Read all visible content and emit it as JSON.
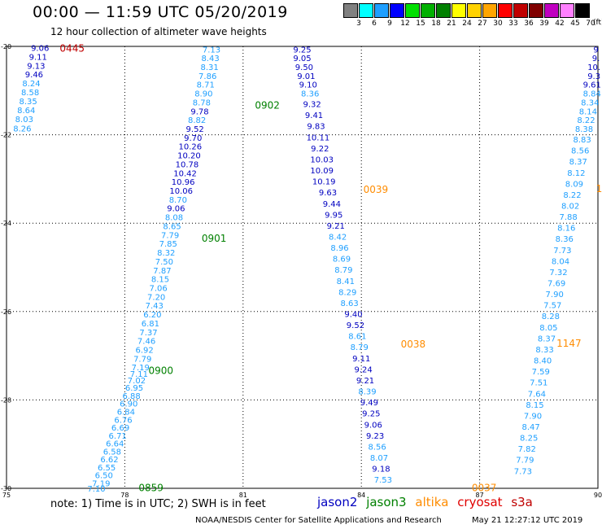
{
  "header": {
    "title": "00:00 — 11:59 UTC 05/20/2019",
    "subtitle": "12 hour collection of altimeter wave heights"
  },
  "color_scale": {
    "labels": [
      "3",
      "6",
      "9",
      "12",
      "15",
      "18",
      "21",
      "24",
      "27",
      "30",
      "33",
      "36",
      "39",
      "42",
      "45",
      "70"
    ],
    "unit": "(ft)",
    "colors": [
      "#808080",
      "#00ffff",
      "#1e9fff",
      "#0000ff",
      "#00e000",
      "#00b000",
      "#008000",
      "#ffff00",
      "#ffd200",
      "#ffa500",
      "#ff0000",
      "#c00000",
      "#800000",
      "#c000c0",
      "#ff80ff",
      "#000000"
    ]
  },
  "axes": {
    "lon_labels": [
      "75",
      "78",
      "81",
      "84",
      "87",
      "90"
    ],
    "lat_labels": [
      "-20",
      "-22",
      "-24",
      "-26",
      "-28",
      "-30"
    ]
  },
  "satellites": {
    "jason2": {
      "name": "jason2",
      "color": "#0000c0"
    },
    "jason3": {
      "name": "jason3",
      "color": "#008000"
    },
    "altika": {
      "name": "altika",
      "color": "#ff8c00"
    },
    "cryosat": {
      "name": "cryosat",
      "color": "#e00000"
    },
    "s3a": {
      "name": "s3a",
      "color": "#c00000"
    },
    "value_colors": {
      "light": "#1e9fff",
      "dark": "#0000c0"
    }
  },
  "time_labels": [
    {
      "text": "0445",
      "sat": "s3a",
      "lon": 76.35,
      "lat": -20.03
    },
    {
      "text": "0902",
      "sat": "jason3",
      "lon": 81.3,
      "lat": -21.32
    },
    {
      "text": "0901",
      "sat": "jason3",
      "lon": 79.95,
      "lat": -24.33
    },
    {
      "text": "0900",
      "sat": "jason3",
      "lon": 78.6,
      "lat": -27.32
    },
    {
      "text": "0859",
      "sat": "jason3",
      "lon": 78.35,
      "lat": -29.97
    },
    {
      "text": "0039",
      "sat": "altika",
      "lon": 84.05,
      "lat": -23.22
    },
    {
      "text": "0038",
      "sat": "altika",
      "lon": 85.0,
      "lat": -26.72
    },
    {
      "text": "0037",
      "sat": "altika",
      "lon": 86.8,
      "lat": -29.97
    },
    {
      "text": "1147",
      "sat": "altika",
      "lon": 88.95,
      "lat": -26.7
    },
    {
      "text": "1",
      "sat": "altika",
      "lon": 89.95,
      "lat": -23.2
    }
  ],
  "tracks": [
    {
      "name": "s3a-left-track",
      "points": [
        {
          "v": "9.06",
          "lon": 75.85,
          "lat": -20.03,
          "c": "dark"
        },
        {
          "v": "9.11",
          "lon": 75.8,
          "lat": -20.23,
          "c": "dark"
        },
        {
          "v": "9.13",
          "lon": 75.75,
          "lat": -20.43,
          "c": "dark"
        },
        {
          "v": "9.46",
          "lon": 75.7,
          "lat": -20.63,
          "c": "dark"
        },
        {
          "v": "8.24",
          "lon": 75.63,
          "lat": -20.83,
          "c": "light"
        },
        {
          "v": "8.58",
          "lon": 75.6,
          "lat": -21.03,
          "c": "light"
        },
        {
          "v": "8.35",
          "lon": 75.55,
          "lat": -21.23,
          "c": "light"
        },
        {
          "v": "8.64",
          "lon": 75.5,
          "lat": -21.44,
          "c": "light"
        },
        {
          "v": "8.03",
          "lon": 75.45,
          "lat": -21.64,
          "c": "light"
        },
        {
          "v": "8.26",
          "lon": 75.4,
          "lat": -21.85,
          "c": "light"
        }
      ]
    },
    {
      "name": "jason3-track",
      "points": [
        {
          "v": "7.13",
          "lon": 80.2,
          "lat": -20.06,
          "c": "light"
        },
        {
          "v": "8.43",
          "lon": 80.17,
          "lat": -20.26,
          "c": "light"
        },
        {
          "v": "8.31",
          "lon": 80.15,
          "lat": -20.46,
          "c": "light"
        },
        {
          "v": "7.86",
          "lon": 80.1,
          "lat": -20.66,
          "c": "light"
        },
        {
          "v": "8.71",
          "lon": 80.05,
          "lat": -20.86,
          "c": "light"
        },
        {
          "v": "8.90",
          "lon": 80.0,
          "lat": -21.06,
          "c": "light"
        },
        {
          "v": "8.78",
          "lon": 79.95,
          "lat": -21.26,
          "c": "light"
        },
        {
          "v": "9.78",
          "lon": 79.9,
          "lat": -21.46,
          "c": "dark"
        },
        {
          "v": "8.82",
          "lon": 79.83,
          "lat": -21.66,
          "c": "light"
        },
        {
          "v": "9.52",
          "lon": 79.78,
          "lat": -21.86,
          "c": "dark"
        },
        {
          "v": "9.70",
          "lon": 79.73,
          "lat": -22.06,
          "c": "dark"
        },
        {
          "v": "10.26",
          "lon": 79.66,
          "lat": -22.26,
          "c": "dark"
        },
        {
          "v": "10.20",
          "lon": 79.63,
          "lat": -22.46,
          "c": "dark"
        },
        {
          "v": "10.78",
          "lon": 79.58,
          "lat": -22.66,
          "c": "dark"
        },
        {
          "v": "10.42",
          "lon": 79.53,
          "lat": -22.86,
          "c": "dark"
        },
        {
          "v": "10.96",
          "lon": 79.48,
          "lat": -23.06,
          "c": "dark"
        },
        {
          "v": "10.06",
          "lon": 79.43,
          "lat": -23.26,
          "c": "dark"
        },
        {
          "v": "8.70",
          "lon": 79.35,
          "lat": -23.46,
          "c": "light"
        },
        {
          "v": "9.06",
          "lon": 79.3,
          "lat": -23.66,
          "c": "dark"
        },
        {
          "v": "8.08",
          "lon": 79.25,
          "lat": -23.86,
          "c": "light"
        },
        {
          "v": "8.65",
          "lon": 79.2,
          "lat": -24.06,
          "c": "light"
        },
        {
          "v": "7.79",
          "lon": 79.15,
          "lat": -24.26,
          "c": "light"
        },
        {
          "v": "7.85",
          "lon": 79.1,
          "lat": -24.46,
          "c": "light"
        },
        {
          "v": "8.32",
          "lon": 79.05,
          "lat": -24.66,
          "c": "light"
        },
        {
          "v": "7.50",
          "lon": 79.0,
          "lat": -24.86,
          "c": "light"
        },
        {
          "v": "7.87",
          "lon": 78.95,
          "lat": -25.06,
          "c": "light"
        },
        {
          "v": "8.15",
          "lon": 78.9,
          "lat": -25.26,
          "c": "light"
        },
        {
          "v": "7.06",
          "lon": 78.85,
          "lat": -25.46,
          "c": "light"
        },
        {
          "v": "7.20",
          "lon": 78.8,
          "lat": -25.66,
          "c": "light"
        },
        {
          "v": "7.43",
          "lon": 78.75,
          "lat": -25.86,
          "c": "light"
        },
        {
          "v": "6.20",
          "lon": 78.7,
          "lat": -26.06,
          "c": "light"
        },
        {
          "v": "6.81",
          "lon": 78.65,
          "lat": -26.26,
          "c": "light"
        },
        {
          "v": "7.37",
          "lon": 78.6,
          "lat": -26.46,
          "c": "light"
        },
        {
          "v": "7.46",
          "lon": 78.55,
          "lat": -26.66,
          "c": "light"
        },
        {
          "v": "6.92",
          "lon": 78.5,
          "lat": -26.86,
          "c": "light"
        },
        {
          "v": "7.79",
          "lon": 78.45,
          "lat": -27.06,
          "c": "light"
        },
        {
          "v": "7.19",
          "lon": 78.4,
          "lat": -27.26,
          "c": "light"
        },
        {
          "v": "7.11",
          "lon": 78.36,
          "lat": -27.4,
          "c": "light"
        },
        {
          "v": "7.02",
          "lon": 78.3,
          "lat": -27.55,
          "c": "light"
        },
        {
          "v": "6.95",
          "lon": 78.24,
          "lat": -27.72,
          "c": "light"
        },
        {
          "v": "6.88",
          "lon": 78.17,
          "lat": -27.9,
          "c": "light"
        },
        {
          "v": "6.90",
          "lon": 78.1,
          "lat": -28.08,
          "c": "light"
        },
        {
          "v": "6.84",
          "lon": 78.03,
          "lat": -28.26,
          "c": "light"
        },
        {
          "v": "6.76",
          "lon": 77.96,
          "lat": -28.44,
          "c": "light"
        },
        {
          "v": "6.69",
          "lon": 77.89,
          "lat": -28.62,
          "c": "light"
        },
        {
          "v": "6.71",
          "lon": 77.82,
          "lat": -28.8,
          "c": "light"
        },
        {
          "v": "6.64",
          "lon": 77.75,
          "lat": -28.98,
          "c": "light"
        },
        {
          "v": "6.58",
          "lon": 77.68,
          "lat": -29.16,
          "c": "light"
        },
        {
          "v": "6.62",
          "lon": 77.61,
          "lat": -29.34,
          "c": "light"
        },
        {
          "v": "6.55",
          "lon": 77.54,
          "lat": -29.52,
          "c": "light"
        },
        {
          "v": "6.50",
          "lon": 77.47,
          "lat": -29.7,
          "c": "light"
        },
        {
          "v": "7.19",
          "lon": 77.4,
          "lat": -29.88,
          "c": "light"
        },
        {
          "v": "7.10",
          "lon": 77.28,
          "lat": -30.0,
          "c": "light"
        }
      ]
    },
    {
      "name": "altika-track",
      "points": [
        {
          "v": "9.25",
          "lon": 82.5,
          "lat": -20.06,
          "c": "dark"
        },
        {
          "v": "9.05",
          "lon": 82.5,
          "lat": -20.26,
          "c": "dark"
        },
        {
          "v": "9.50",
          "lon": 82.55,
          "lat": -20.46,
          "c": "dark"
        },
        {
          "v": "9.01",
          "lon": 82.6,
          "lat": -20.66,
          "c": "dark"
        },
        {
          "v": "9.10",
          "lon": 82.65,
          "lat": -20.86,
          "c": "dark"
        },
        {
          "v": "8.36",
          "lon": 82.7,
          "lat": -21.06,
          "c": "light"
        },
        {
          "v": "9.32",
          "lon": 82.75,
          "lat": -21.3,
          "c": "dark"
        },
        {
          "v": "9.41",
          "lon": 82.8,
          "lat": -21.55,
          "c": "dark"
        },
        {
          "v": "9.83",
          "lon": 82.85,
          "lat": -21.8,
          "c": "dark"
        },
        {
          "v": "10.11",
          "lon": 82.9,
          "lat": -22.05,
          "c": "dark"
        },
        {
          "v": "9.22",
          "lon": 82.95,
          "lat": -22.3,
          "c": "dark"
        },
        {
          "v": "10.03",
          "lon": 83.0,
          "lat": -22.55,
          "c": "dark"
        },
        {
          "v": "10.09",
          "lon": 83.0,
          "lat": -22.8,
          "c": "dark"
        },
        {
          "v": "10.19",
          "lon": 83.05,
          "lat": -23.05,
          "c": "dark"
        },
        {
          "v": "9.63",
          "lon": 83.15,
          "lat": -23.3,
          "c": "dark"
        },
        {
          "v": "9.44",
          "lon": 83.25,
          "lat": -23.55,
          "c": "dark"
        },
        {
          "v": "9.95",
          "lon": 83.3,
          "lat": -23.8,
          "c": "dark"
        },
        {
          "v": "9.21",
          "lon": 83.35,
          "lat": -24.05,
          "c": "dark"
        },
        {
          "v": "8.42",
          "lon": 83.4,
          "lat": -24.3,
          "c": "light"
        },
        {
          "v": "8.96",
          "lon": 83.45,
          "lat": -24.55,
          "c": "light"
        },
        {
          "v": "8.69",
          "lon": 83.5,
          "lat": -24.8,
          "c": "light"
        },
        {
          "v": "8.79",
          "lon": 83.55,
          "lat": -25.05,
          "c": "light"
        },
        {
          "v": "8.41",
          "lon": 83.6,
          "lat": -25.3,
          "c": "light"
        },
        {
          "v": "8.29",
          "lon": 83.65,
          "lat": -25.55,
          "c": "light"
        },
        {
          "v": "8.63",
          "lon": 83.7,
          "lat": -25.8,
          "c": "light"
        },
        {
          "v": "9.40",
          "lon": 83.8,
          "lat": -26.05,
          "c": "dark"
        },
        {
          "v": "9.52",
          "lon": 83.85,
          "lat": -26.3,
          "c": "dark"
        },
        {
          "v": "8.61",
          "lon": 83.9,
          "lat": -26.55,
          "c": "light"
        },
        {
          "v": "8.79",
          "lon": 83.95,
          "lat": -26.8,
          "c": "light"
        },
        {
          "v": "9.11",
          "lon": 84.0,
          "lat": -27.05,
          "c": "dark"
        },
        {
          "v": "9.24",
          "lon": 84.05,
          "lat": -27.3,
          "c": "dark"
        },
        {
          "v": "9.21",
          "lon": 84.1,
          "lat": -27.55,
          "c": "dark"
        },
        {
          "v": "8.39",
          "lon": 84.15,
          "lat": -27.8,
          "c": "light"
        },
        {
          "v": "9.49",
          "lon": 84.2,
          "lat": -28.05,
          "c": "dark"
        },
        {
          "v": "9.25",
          "lon": 84.25,
          "lat": -28.3,
          "c": "dark"
        },
        {
          "v": "9.06",
          "lon": 84.3,
          "lat": -28.55,
          "c": "dark"
        },
        {
          "v": "9.23",
          "lon": 84.35,
          "lat": -28.8,
          "c": "dark"
        },
        {
          "v": "8.56",
          "lon": 84.4,
          "lat": -29.05,
          "c": "light"
        },
        {
          "v": "8.07",
          "lon": 84.45,
          "lat": -29.3,
          "c": "light"
        },
        {
          "v": "9.18",
          "lon": 84.5,
          "lat": -29.55,
          "c": "dark"
        },
        {
          "v": "7.53",
          "lon": 84.55,
          "lat": -29.8,
          "c": "light"
        }
      ]
    },
    {
      "name": "altika-right-track",
      "points": [
        {
          "v": "9",
          "lon": 89.95,
          "lat": -20.06,
          "c": "dark"
        },
        {
          "v": "9.",
          "lon": 89.95,
          "lat": -20.26,
          "c": "dark"
        },
        {
          "v": "10.",
          "lon": 89.9,
          "lat": -20.46,
          "c": "dark"
        },
        {
          "v": "9.3",
          "lon": 89.9,
          "lat": -20.66,
          "c": "dark"
        },
        {
          "v": "9.61",
          "lon": 89.85,
          "lat": -20.86,
          "c": "dark"
        },
        {
          "v": "8.84",
          "lon": 89.85,
          "lat": -21.06,
          "c": "light"
        },
        {
          "v": "8.34",
          "lon": 89.8,
          "lat": -21.26,
          "c": "light"
        },
        {
          "v": "8.14",
          "lon": 89.75,
          "lat": -21.46,
          "c": "light"
        },
        {
          "v": "8.22",
          "lon": 89.7,
          "lat": -21.66,
          "c": "light"
        },
        {
          "v": "8.38",
          "lon": 89.65,
          "lat": -21.86,
          "c": "light"
        },
        {
          "v": "8.83",
          "lon": 89.6,
          "lat": -22.1,
          "c": "light"
        },
        {
          "v": "8.56",
          "lon": 89.55,
          "lat": -22.35,
          "c": "light"
        },
        {
          "v": "8.37",
          "lon": 89.5,
          "lat": -22.6,
          "c": "light"
        },
        {
          "v": "8.12",
          "lon": 89.45,
          "lat": -22.85,
          "c": "light"
        },
        {
          "v": "8.09",
          "lon": 89.4,
          "lat": -23.1,
          "c": "light"
        },
        {
          "v": "8.22",
          "lon": 89.35,
          "lat": -23.35,
          "c": "light"
        },
        {
          "v": "8.02",
          "lon": 89.3,
          "lat": -23.6,
          "c": "light"
        },
        {
          "v": "7.88",
          "lon": 89.25,
          "lat": -23.85,
          "c": "light"
        },
        {
          "v": "8.16",
          "lon": 89.2,
          "lat": -24.1,
          "c": "light"
        },
        {
          "v": "8.36",
          "lon": 89.15,
          "lat": -24.35,
          "c": "light"
        },
        {
          "v": "7.73",
          "lon": 89.1,
          "lat": -24.6,
          "c": "light"
        },
        {
          "v": "8.04",
          "lon": 89.05,
          "lat": -24.85,
          "c": "light"
        },
        {
          "v": "7.32",
          "lon": 89.0,
          "lat": -25.1,
          "c": "light"
        },
        {
          "v": "7.69",
          "lon": 88.95,
          "lat": -25.35,
          "c": "light"
        },
        {
          "v": "7.90",
          "lon": 88.9,
          "lat": -25.6,
          "c": "light"
        },
        {
          "v": "7.57",
          "lon": 88.85,
          "lat": -25.85,
          "c": "light"
        },
        {
          "v": "8.28",
          "lon": 88.8,
          "lat": -26.1,
          "c": "light"
        },
        {
          "v": "8.05",
          "lon": 88.75,
          "lat": -26.35,
          "c": "light"
        },
        {
          "v": "8.37",
          "lon": 88.7,
          "lat": -26.6,
          "c": "light"
        },
        {
          "v": "8.33",
          "lon": 88.65,
          "lat": -26.85,
          "c": "light"
        },
        {
          "v": "8.40",
          "lon": 88.6,
          "lat": -27.1,
          "c": "light"
        },
        {
          "v": "7.59",
          "lon": 88.55,
          "lat": -27.35,
          "c": "light"
        },
        {
          "v": "7.51",
          "lon": 88.5,
          "lat": -27.6,
          "c": "light"
        },
        {
          "v": "7.64",
          "lon": 88.45,
          "lat": -27.85,
          "c": "light"
        },
        {
          "v": "8.15",
          "lon": 88.4,
          "lat": -28.1,
          "c": "light"
        },
        {
          "v": "7.90",
          "lon": 88.35,
          "lat": -28.35,
          "c": "light"
        },
        {
          "v": "8.47",
          "lon": 88.3,
          "lat": -28.6,
          "c": "light"
        },
        {
          "v": "8.25",
          "lon": 88.25,
          "lat": -28.85,
          "c": "light"
        },
        {
          "v": "7.82",
          "lon": 88.2,
          "lat": -29.1,
          "c": "light"
        },
        {
          "v": "7.79",
          "lon": 88.15,
          "lat": -29.35,
          "c": "light"
        },
        {
          "v": "7.73",
          "lon": 88.1,
          "lat": -29.6,
          "c": "light"
        }
      ]
    }
  ],
  "footer": {
    "note": "note: 1) Time is in UTC; 2) SWH is in feet",
    "credit": "NOAA/NESDIS Center for Satellite Applications and Research",
    "timestamp": "May 21 12:27:12 UTC 2019"
  }
}
